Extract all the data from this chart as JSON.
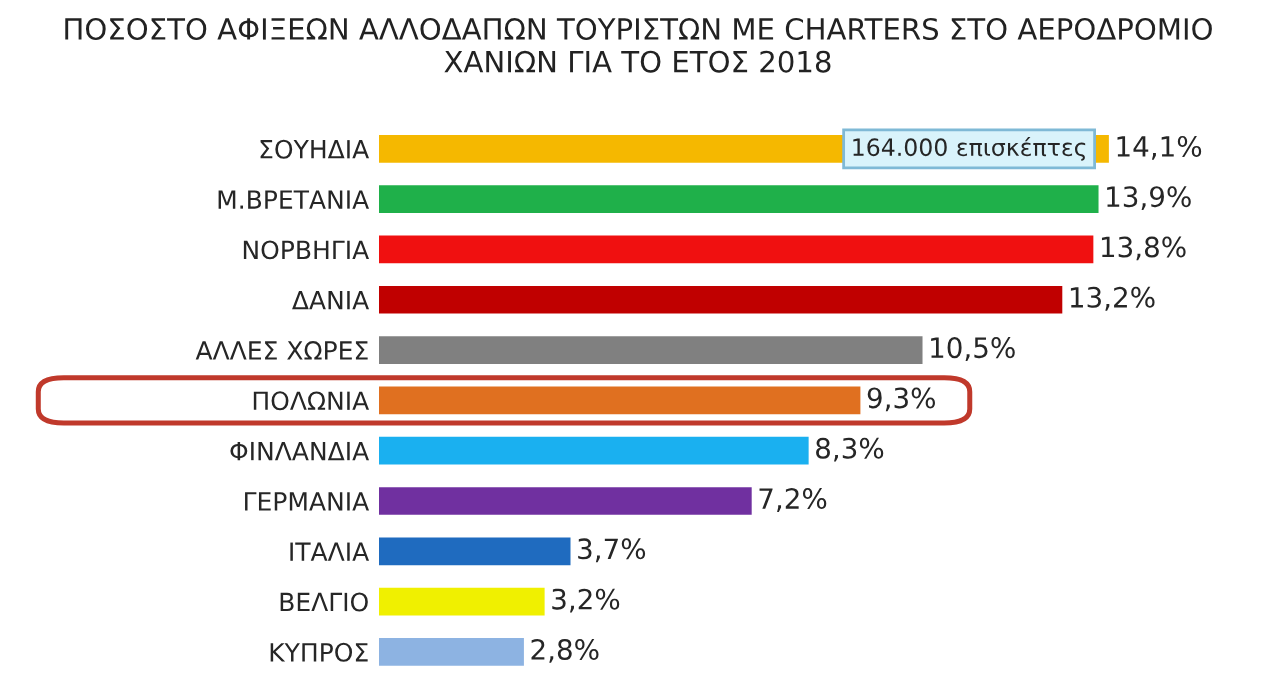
{
  "chart_data": {
    "type": "bar",
    "orientation": "horizontal",
    "title": "ΠΟΣΟΣΤΟ ΑΦΙΞΕΩΝ ΑΛΛΟΔΑΠΩΝ ΤΟΥΡΙΣΤΩΝ ΜΕ CHARTERS ΣΤΟ ΑΕΡΟΔΡΟΜΙΟ\nΧΑΝΙΩΝ ΓΙΑ ΤΟ ΕΤΟΣ 2018",
    "categories": [
      "ΣΟΥΗΔΙΑ",
      "Μ.ΒΡΕΤΑΝΙΑ",
      "ΝΟΡΒΗΓΙΑ",
      "ΔΑΝΙΑ",
      "ΑΛΛΕΣ ΧΩΡΕΣ",
      "ΠΟΛΩΝΙΑ",
      "ΦΙΝΛΑΝΔΙΑ",
      "ΓΕΡΜΑΝΙΑ",
      "ΙΤΑΛΙΑ",
      "ΒΕΛΓΙΟ",
      "ΚΥΠΡΟΣ"
    ],
    "values": [
      14.1,
      13.9,
      13.8,
      13.2,
      10.5,
      9.3,
      8.3,
      7.2,
      3.7,
      3.2,
      2.8
    ],
    "value_labels": [
      "14,1%",
      "13,9%",
      "13,8%",
      "13,2%",
      "10,5%",
      "9,3%",
      "8,3%",
      "7,2%",
      "3,7%",
      "3,2%",
      "2,8%"
    ],
    "colors": [
      "#f5b800",
      "#1fb04a",
      "#f01010",
      "#c00000",
      "#808080",
      "#e07020",
      "#1ab0f0",
      "#7030a0",
      "#1f6bbf",
      "#f0f000",
      "#8db3e2"
    ],
    "annotations": [
      {
        "text": "164.000 επισκέπτες",
        "x": 11.4,
        "y": "ΣΟΥΗΔΙΑ"
      }
    ],
    "grid": false,
    "legend": false
  }
}
